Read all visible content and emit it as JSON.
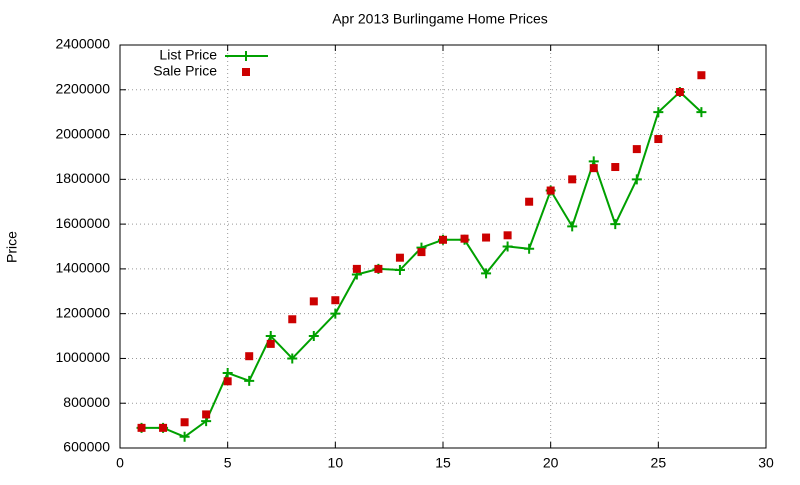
{
  "chart_data": {
    "type": "line",
    "title": "Apr 2013 Burlingame Home Prices",
    "y_label": "Price",
    "x": [
      1,
      2,
      3,
      4,
      5,
      6,
      7,
      8,
      9,
      10,
      11,
      12,
      13,
      14,
      15,
      16,
      17,
      18,
      19,
      20,
      21,
      22,
      23,
      24,
      25,
      26,
      27
    ],
    "series": [
      {
        "name": "List Price",
        "color": "#00a000",
        "style": "linespoints",
        "values": [
          690000,
          690000,
          650000,
          720000,
          935000,
          900000,
          1100000,
          1000000,
          1100000,
          1200000,
          1375000,
          1400000,
          1395000,
          1495000,
          1530000,
          1530000,
          1380000,
          1500000,
          1490000,
          1750000,
          1590000,
          1880000,
          1600000,
          1800000,
          2100000,
          2190000,
          2100000
        ]
      },
      {
        "name": "Sale Price",
        "color": "#cc0000",
        "style": "points",
        "values": [
          690000,
          690000,
          715000,
          750000,
          898000,
          1010000,
          1065000,
          1175000,
          1255000,
          1260000,
          1400000,
          1400000,
          1450000,
          1475000,
          1530000,
          1535000,
          1540000,
          1550000,
          1700000,
          1750000,
          1800000,
          1850000,
          1855000,
          1935000,
          1980000,
          2190000,
          2265000
        ]
      }
    ],
    "xlim": [
      0,
      30
    ],
    "xticks": [
      0,
      5,
      10,
      15,
      20,
      25,
      30
    ],
    "ylim": [
      600000,
      2400000
    ],
    "yticks": [
      600000,
      800000,
      1000000,
      1200000,
      1400000,
      1600000,
      1800000,
      2000000,
      2200000,
      2400000
    ],
    "grid": true,
    "legend": "top-left"
  }
}
